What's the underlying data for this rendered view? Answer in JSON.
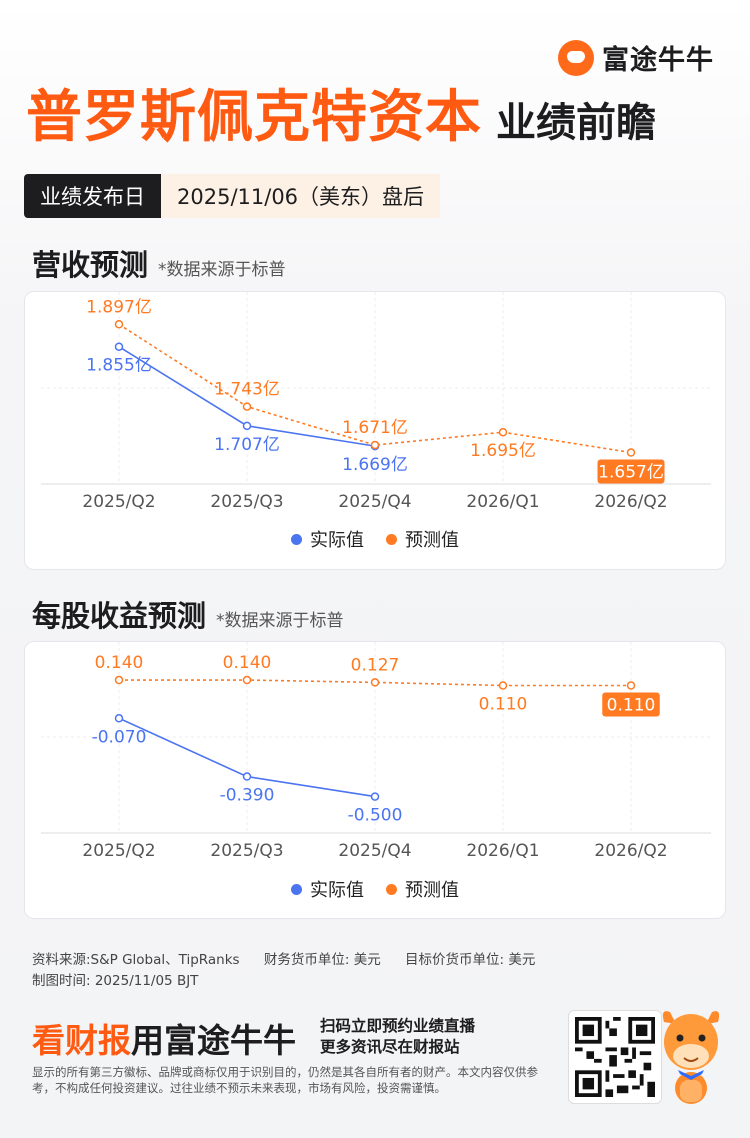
{
  "brand": {
    "name": "富途牛牛"
  },
  "header": {
    "company": "普罗斯佩克特资本",
    "subtitle": "业绩前瞻",
    "date_label": "业绩发布日",
    "date_value": "2025/11/06（美东）盘后"
  },
  "colors": {
    "actual": "#4b74f0",
    "forecast": "#ff7a21",
    "accent": "#ff5a12"
  },
  "chart_data": [
    {
      "type": "line",
      "title": "营收预测",
      "note": "*数据来源于标普",
      "categories": [
        "2025/Q2",
        "2025/Q3",
        "2025/Q4",
        "2026/Q1",
        "2026/Q2"
      ],
      "unit": "亿",
      "ylim": [
        1.6,
        1.92
      ],
      "grid": true,
      "legend": "bottom-center",
      "series": [
        {
          "name": "实际值",
          "values": [
            1.855,
            1.707,
            1.669,
            null,
            null
          ],
          "labels": [
            "1.855亿",
            "1.707亿",
            "1.669亿",
            "",
            ""
          ]
        },
        {
          "name": "预测值",
          "values": [
            1.897,
            1.743,
            1.671,
            1.695,
            1.657
          ],
          "labels": [
            "1.897亿",
            "1.743亿",
            "1.671亿",
            "1.695亿",
            "1.657亿"
          ]
        }
      ],
      "highlight_index": 4
    },
    {
      "type": "line",
      "title": "每股收益预测",
      "note": "*数据来源于标普",
      "categories": [
        "2025/Q2",
        "2025/Q3",
        "2025/Q4",
        "2026/Q1",
        "2026/Q2"
      ],
      "ylim": [
        -0.7,
        0.25
      ],
      "grid": true,
      "legend": "bottom-center",
      "series": [
        {
          "name": "实际值",
          "values": [
            -0.07,
            -0.39,
            -0.5,
            null,
            null
          ],
          "labels": [
            "-0.070",
            "-0.390",
            "-0.500",
            "",
            ""
          ]
        },
        {
          "name": "预测值",
          "values": [
            0.14,
            0.14,
            0.127,
            0.11,
            0.11
          ],
          "labels": [
            "0.140",
            "0.140",
            "0.127",
            "0.110",
            "0.110"
          ]
        }
      ],
      "highlight_index": 4
    }
  ],
  "footer": {
    "source": "资料来源:S&P Global、TipRanks",
    "currency": "财务货币单位: 美元",
    "target_currency": "目标价货币单位: 美元",
    "made_time": "制图时间: 2025/11/05 BJT",
    "disclaimer": "显示的所有第三方徽标、品牌或商标仅用于识别目的，仍然是其各自所有者的财产。本文内容仅供参考，不构成任何投资建议。过往业绩不预示未来表现，市场有风险，投资需谨慎。"
  },
  "promo": {
    "highlight": "看财报",
    "rest": "用富途牛牛",
    "line1": "扫码立即预约业绩直播",
    "line2": "更多资讯尽在财报站"
  }
}
